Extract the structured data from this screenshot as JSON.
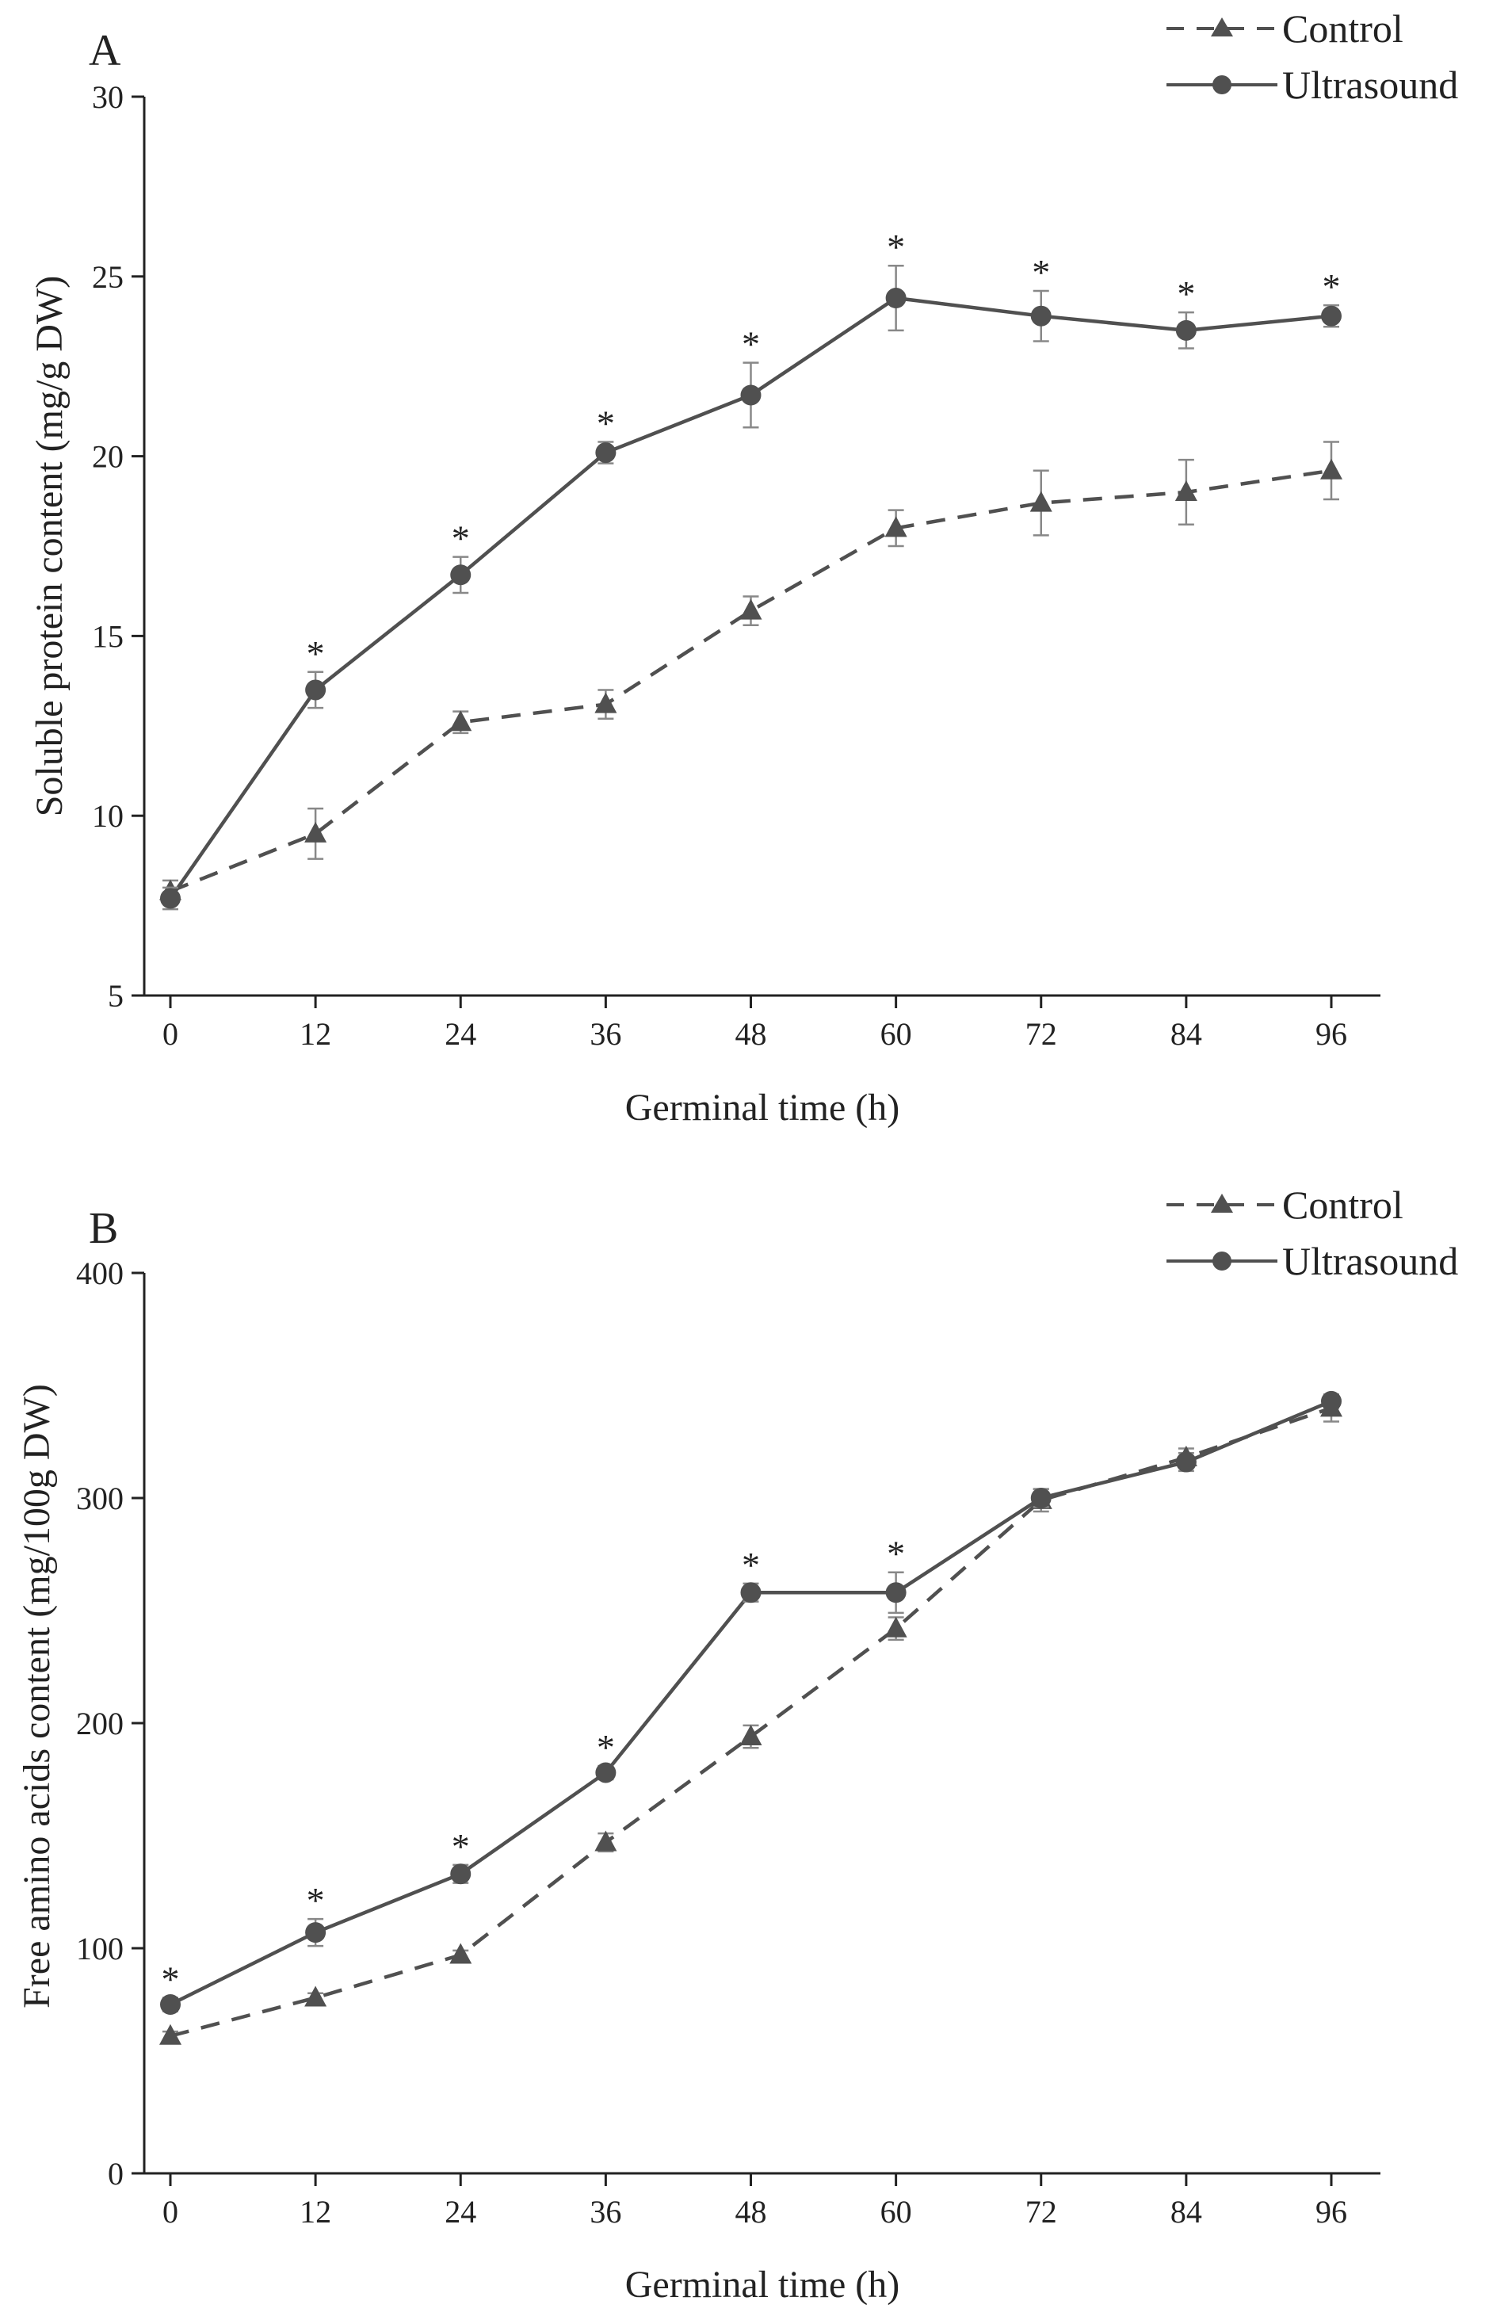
{
  "chart_data": [
    {
      "type": "line",
      "panel_label": "A",
      "xlabel": "Germinal time (h)",
      "ylabel": "Soluble protein content (mg/g DW)",
      "x": [
        0,
        12,
        24,
        36,
        48,
        60,
        72,
        84,
        96
      ],
      "xticks": [
        "0",
        "12",
        "24",
        "36",
        "48",
        "60",
        "72",
        "84",
        "96"
      ],
      "ylim": [
        5,
        30
      ],
      "yticks": [
        5,
        10,
        15,
        20,
        25,
        30
      ],
      "ytick_labels": [
        "5",
        "10",
        "15",
        "20",
        "25",
        "30"
      ],
      "grid": false,
      "legend_position": "top-right",
      "series": [
        {
          "name": "Control",
          "marker": "triangle",
          "line_style": "dashed",
          "values": [
            7.9,
            9.5,
            12.6,
            13.1,
            15.7,
            18.0,
            18.7,
            19.0,
            19.6
          ],
          "errors": [
            0.3,
            0.7,
            0.3,
            0.4,
            0.4,
            0.5,
            0.9,
            0.9,
            0.8
          ]
        },
        {
          "name": "Ultrasound",
          "marker": "circle",
          "line_style": "solid",
          "values": [
            7.7,
            13.5,
            16.7,
            20.1,
            21.7,
            24.4,
            23.9,
            23.5,
            23.9
          ],
          "errors": [
            0.3,
            0.5,
            0.5,
            0.3,
            0.9,
            0.9,
            0.7,
            0.5,
            0.3
          ]
        }
      ],
      "significance": [
        "",
        "*",
        "*",
        "*",
        "*",
        "*",
        "*",
        "*",
        "*"
      ]
    },
    {
      "type": "line",
      "panel_label": "B",
      "xlabel": "Germinal time (h)",
      "ylabel": "Free amino acids content (mg/100g DW)",
      "x": [
        0,
        12,
        24,
        36,
        48,
        60,
        72,
        84,
        96
      ],
      "xticks": [
        "0",
        "12",
        "24",
        "36",
        "48",
        "60",
        "72",
        "84",
        "96"
      ],
      "ylim": [
        0,
        400
      ],
      "yticks": [
        0,
        100,
        200,
        300,
        400
      ],
      "ytick_labels": [
        "0",
        "100",
        "200",
        "300",
        "400"
      ],
      "grid": false,
      "legend_position": "top-right",
      "series": [
        {
          "name": "Control",
          "marker": "triangle",
          "line_style": "dashed",
          "values": [
            61,
            78,
            97,
            147,
            194,
            242,
            299,
            318,
            340
          ],
          "errors": [
            2,
            2,
            2,
            4,
            5,
            5,
            5,
            4,
            6
          ]
        },
        {
          "name": "Ultrasound",
          "marker": "circle",
          "line_style": "solid",
          "values": [
            75,
            107,
            133,
            178,
            258,
            258,
            300,
            316,
            343
          ],
          "errors": [
            3,
            6,
            4,
            3,
            4,
            9,
            4,
            4,
            3
          ]
        }
      ],
      "significance": [
        "*",
        "*",
        "*",
        "*",
        "*",
        "*",
        "",
        "",
        ""
      ]
    }
  ],
  "colors": {
    "series": "#505050",
    "axis": "#222222",
    "error_bar": "#888888"
  }
}
